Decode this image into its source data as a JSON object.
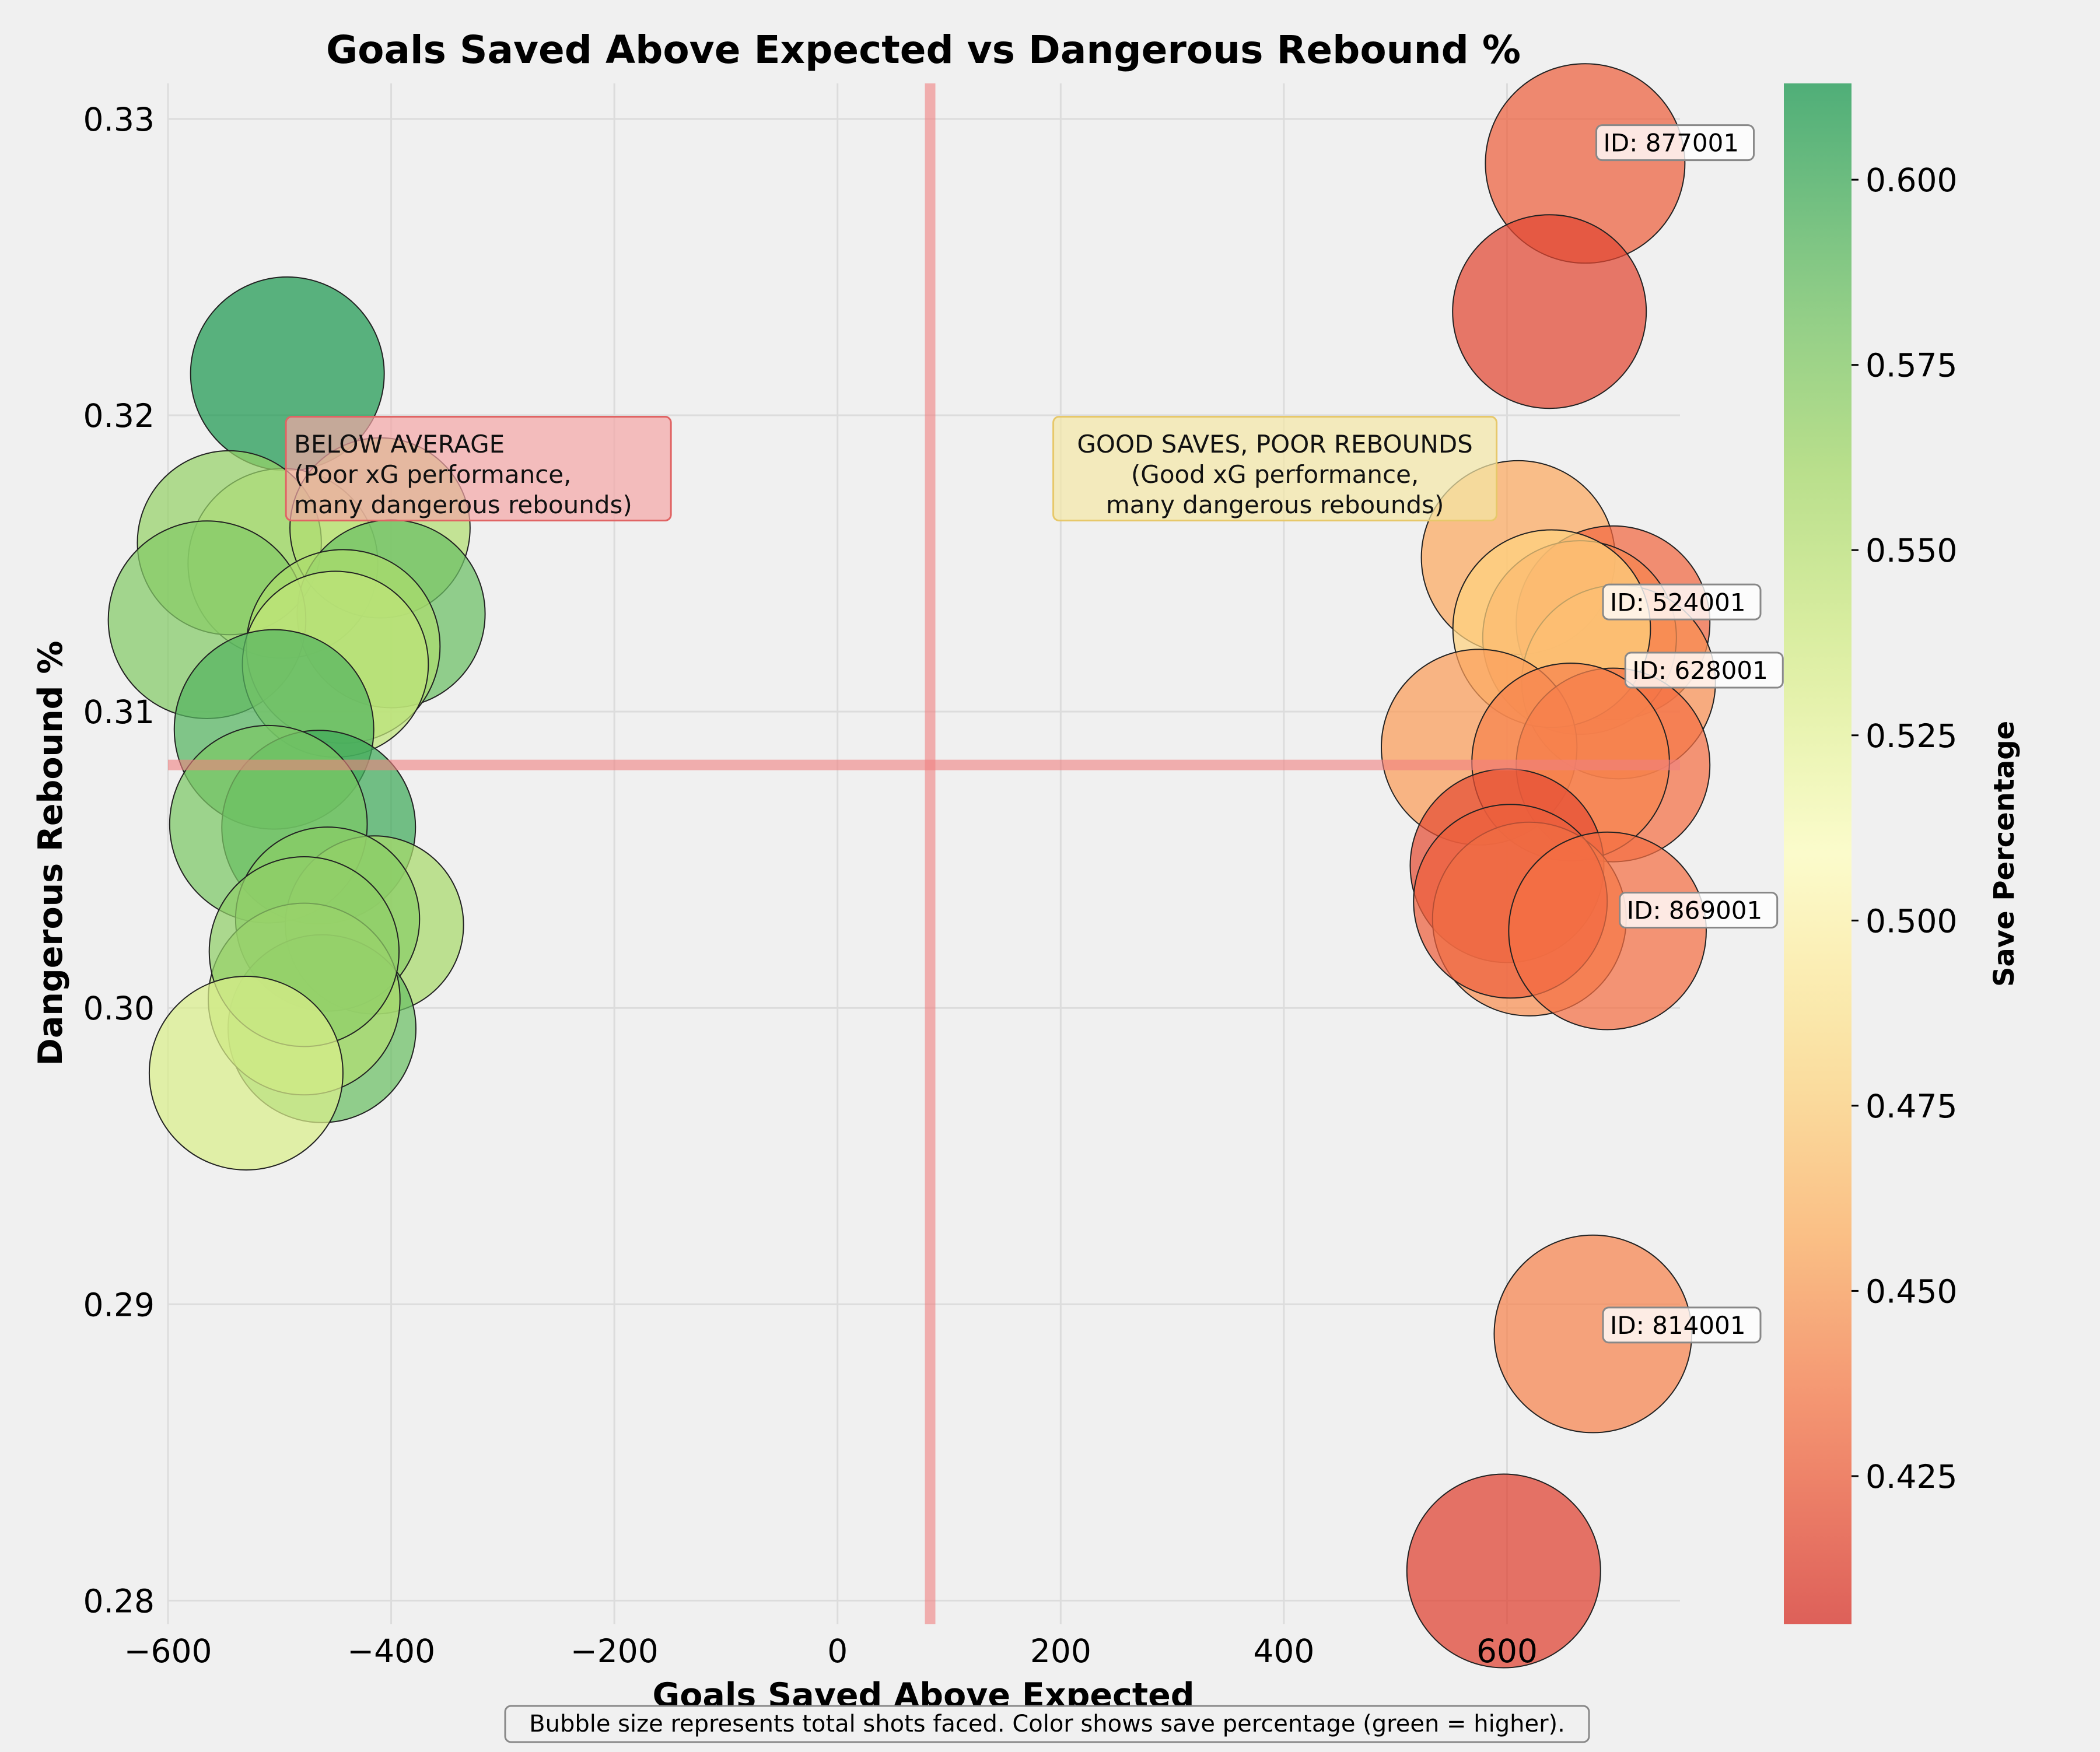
{
  "chart_data": {
    "type": "scatter",
    "title": "Goals Saved Above Expected vs Dangerous Rebound %",
    "xlabel": "Goals Saved Above Expected",
    "ylabel": "Dangerous Rebound %",
    "xlim": [
      -600,
      755
    ],
    "ylim": [
      0.2792,
      0.3312
    ],
    "x_ticks": [
      -600,
      -400,
      -200,
      0,
      200,
      400,
      600
    ],
    "x_tick_labels": [
      "−600",
      "−400",
      "−200",
      "0",
      "200",
      "400",
      "600"
    ],
    "y_ticks": [
      0.28,
      0.29,
      0.3,
      0.31,
      0.32,
      0.33
    ],
    "y_tick_labels": [
      "0.28",
      "0.29",
      "0.30",
      "0.31",
      "0.32",
      "0.33"
    ],
    "grid": true,
    "reference_lines": {
      "x": 83,
      "y": 0.3082,
      "color": "#f08080"
    },
    "colorbar": {
      "label": "Save Percentage",
      "min": 0.405,
      "max": 0.613,
      "ticks": [
        0.425,
        0.45,
        0.475,
        0.5,
        0.525,
        0.55,
        0.575,
        0.6
      ],
      "tick_labels": [
        "0.425",
        "0.450",
        "0.475",
        "0.500",
        "0.525",
        "0.550",
        "0.575",
        "0.600"
      ],
      "colormap": "RdYlGn"
    },
    "points": [
      {
        "x": -493,
        "y": 0.3214,
        "save_pct": 0.612,
        "size": 1.0
      },
      {
        "x": -497,
        "y": 0.315,
        "save_pct": 0.525,
        "size": 0.98
      },
      {
        "x": -545,
        "y": 0.3157,
        "save_pct": 0.568,
        "size": 0.95
      },
      {
        "x": -410,
        "y": 0.3162,
        "save_pct": 0.555,
        "size": 0.93
      },
      {
        "x": -400,
        "y": 0.3133,
        "save_pct": 0.585,
        "size": 0.97
      },
      {
        "x": -565,
        "y": 0.3131,
        "save_pct": 0.575,
        "size": 1.02
      },
      {
        "x": -443,
        "y": 0.3122,
        "save_pct": 0.558,
        "size": 1.0
      },
      {
        "x": -450,
        "y": 0.3116,
        "save_pct": 0.548,
        "size": 0.96
      },
      {
        "x": -505,
        "y": 0.3094,
        "save_pct": 0.593,
        "size": 1.03
      },
      {
        "x": -465,
        "y": 0.3061,
        "save_pct": 0.6,
        "size": 1.0
      },
      {
        "x": -510,
        "y": 0.3062,
        "save_pct": 0.578,
        "size": 1.02
      },
      {
        "x": -415,
        "y": 0.3028,
        "save_pct": 0.56,
        "size": 0.92
      },
      {
        "x": -457,
        "y": 0.303,
        "save_pct": 0.572,
        "size": 0.95
      },
      {
        "x": -462,
        "y": 0.2993,
        "save_pct": 0.585,
        "size": 0.97
      },
      {
        "x": -478,
        "y": 0.3003,
        "save_pct": 0.555,
        "size": 0.99
      },
      {
        "x": -478,
        "y": 0.3019,
        "save_pct": 0.57,
        "size": 0.98
      },
      {
        "x": -530,
        "y": 0.2978,
        "save_pct": 0.535,
        "size": 1.0
      },
      {
        "x": 670,
        "y": 0.3285,
        "save_pct": 0.425,
        "size": 1.03
      },
      {
        "x": 638,
        "y": 0.3235,
        "save_pct": 0.415,
        "size": 1.0
      },
      {
        "x": 610,
        "y": 0.3152,
        "save_pct": 0.455,
        "size": 1.0
      },
      {
        "x": 695,
        "y": 0.313,
        "save_pct": 0.428,
        "size": 1.0
      },
      {
        "x": 665,
        "y": 0.3125,
        "save_pct": 0.44,
        "size": 1.0
      },
      {
        "x": 700,
        "y": 0.311,
        "save_pct": 0.445,
        "size": 1.0
      },
      {
        "x": 640,
        "y": 0.3128,
        "save_pct": 0.475,
        "size": 1.02
      },
      {
        "x": 575,
        "y": 0.3088,
        "save_pct": 0.45,
        "size": 1.01
      },
      {
        "x": 695,
        "y": 0.3082,
        "save_pct": 0.432,
        "size": 1.0
      },
      {
        "x": 657,
        "y": 0.3083,
        "save_pct": 0.44,
        "size": 1.02
      },
      {
        "x": 600,
        "y": 0.3048,
        "save_pct": 0.418,
        "size": 1.0
      },
      {
        "x": 620,
        "y": 0.303,
        "save_pct": 0.445,
        "size": 1.0
      },
      {
        "x": 603,
        "y": 0.3036,
        "save_pct": 0.425,
        "size": 1.0
      },
      {
        "x": 690,
        "y": 0.3026,
        "save_pct": 0.432,
        "size": 1.02
      },
      {
        "x": 677,
        "y": 0.289,
        "save_pct": 0.44,
        "size": 1.02
      },
      {
        "x": 597,
        "y": 0.281,
        "save_pct": 0.412,
        "size": 1.0
      }
    ],
    "point_labels": [
      {
        "text": "ID: 877001",
        "x": 680,
        "y": 0.3292
      },
      {
        "text": "ID: 524001",
        "x": 686,
        "y": 0.3137
      },
      {
        "text": "ID: 628001",
        "x": 706,
        "y": 0.3114
      },
      {
        "text": "ID: 869001",
        "x": 701,
        "y": 0.3033
      },
      {
        "text": "ID: 814001",
        "x": 686,
        "y": 0.2893
      }
    ],
    "annotations": [
      {
        "text": [
          "BELOW AVERAGE",
          "(Poor xG performance,",
          "many dangerous rebounds)"
        ],
        "x": -487,
        "y": 0.3182,
        "align": "left",
        "fill": "#f4a5a5",
        "stroke": "#e06464"
      },
      {
        "text": [
          "GOOD SAVES, POOR REBOUNDS",
          "(Good xG performance,",
          "many dangerous rebounds)"
        ],
        "x": 392,
        "y": 0.3182,
        "align": "center",
        "fill": "#f3e7a5",
        "stroke": "#e7c86a"
      }
    ],
    "footnote": "Bubble size represents total shots faced. Color shows save percentage (green = higher)."
  }
}
